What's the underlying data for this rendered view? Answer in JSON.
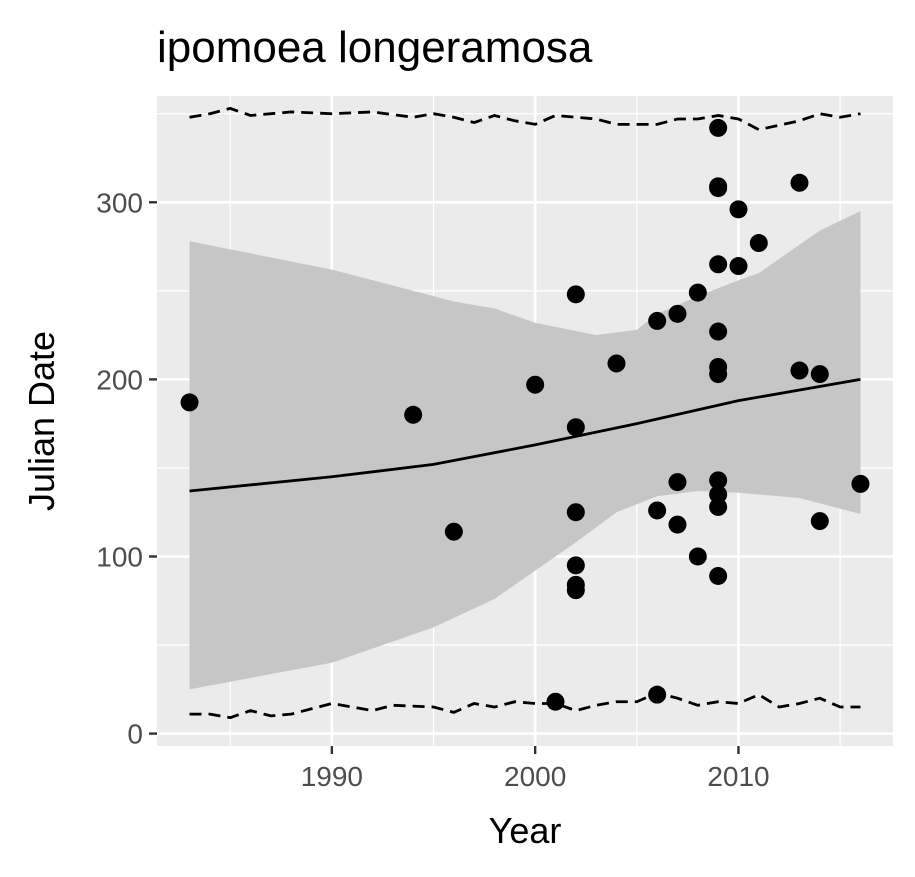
{
  "chart_data": {
    "type": "scatter",
    "title": "ipomoea longeramosa",
    "xlabel": "Year",
    "ylabel": "Julian Date",
    "xlim": [
      1981.4,
      2017.6
    ],
    "ylim": [
      -7,
      360
    ],
    "x_ticks": [
      1990,
      2000,
      2010
    ],
    "y_ticks": [
      0,
      100,
      200,
      300
    ],
    "grid": true,
    "colors": {
      "panel": "#ebebeb",
      "grid": "#ffffff",
      "points": "#000000",
      "ribbon": "#c6c6c6",
      "lines": "#000000",
      "tick_label": "#4d4d4d"
    },
    "points": [
      {
        "x": 1983,
        "y": 187
      },
      {
        "x": 1994,
        "y": 180
      },
      {
        "x": 1996,
        "y": 114
      },
      {
        "x": 2000,
        "y": 197
      },
      {
        "x": 2001,
        "y": 18
      },
      {
        "x": 2002,
        "y": 248
      },
      {
        "x": 2002,
        "y": 173
      },
      {
        "x": 2002,
        "y": 125
      },
      {
        "x": 2002,
        "y": 95
      },
      {
        "x": 2002,
        "y": 84
      },
      {
        "x": 2002,
        "y": 81
      },
      {
        "x": 2004,
        "y": 209
      },
      {
        "x": 2006,
        "y": 233
      },
      {
        "x": 2006,
        "y": 126
      },
      {
        "x": 2006,
        "y": 22
      },
      {
        "x": 2007,
        "y": 237
      },
      {
        "x": 2007,
        "y": 142
      },
      {
        "x": 2007,
        "y": 118
      },
      {
        "x": 2008,
        "y": 249
      },
      {
        "x": 2008,
        "y": 100
      },
      {
        "x": 2009,
        "y": 342
      },
      {
        "x": 2009,
        "y": 309
      },
      {
        "x": 2009,
        "y": 308
      },
      {
        "x": 2009,
        "y": 265
      },
      {
        "x": 2009,
        "y": 227
      },
      {
        "x": 2009,
        "y": 207
      },
      {
        "x": 2009,
        "y": 203
      },
      {
        "x": 2009,
        "y": 143
      },
      {
        "x": 2009,
        "y": 135
      },
      {
        "x": 2009,
        "y": 128
      },
      {
        "x": 2009,
        "y": 89
      },
      {
        "x": 2010,
        "y": 296
      },
      {
        "x": 2010,
        "y": 264
      },
      {
        "x": 2011,
        "y": 277
      },
      {
        "x": 2013,
        "y": 311
      },
      {
        "x": 2013,
        "y": 205
      },
      {
        "x": 2014,
        "y": 203
      },
      {
        "x": 2014,
        "y": 120
      },
      {
        "x": 2016,
        "y": 141
      }
    ],
    "fit_line": [
      {
        "x": 1983,
        "y": 137
      },
      {
        "x": 1990,
        "y": 145
      },
      {
        "x": 1995,
        "y": 152
      },
      {
        "x": 2000,
        "y": 163
      },
      {
        "x": 2005,
        "y": 175
      },
      {
        "x": 2010,
        "y": 188
      },
      {
        "x": 2016,
        "y": 200
      }
    ],
    "ribbon_upper": [
      {
        "x": 1983,
        "y": 278
      },
      {
        "x": 1990,
        "y": 262
      },
      {
        "x": 1996,
        "y": 244
      },
      {
        "x": 1998,
        "y": 240
      },
      {
        "x": 2000,
        "y": 232
      },
      {
        "x": 2003,
        "y": 225
      },
      {
        "x": 2005,
        "y": 228
      },
      {
        "x": 2006,
        "y": 237
      },
      {
        "x": 2008,
        "y": 247
      },
      {
        "x": 2010,
        "y": 256
      },
      {
        "x": 2011,
        "y": 260
      },
      {
        "x": 2014,
        "y": 284
      },
      {
        "x": 2016,
        "y": 295
      }
    ],
    "ribbon_lower": [
      {
        "x": 1983,
        "y": 25
      },
      {
        "x": 1990,
        "y": 40
      },
      {
        "x": 1995,
        "y": 60
      },
      {
        "x": 1998,
        "y": 76
      },
      {
        "x": 2000,
        "y": 92
      },
      {
        "x": 2002,
        "y": 108
      },
      {
        "x": 2004,
        "y": 125
      },
      {
        "x": 2006,
        "y": 134
      },
      {
        "x": 2008,
        "y": 137
      },
      {
        "x": 2010,
        "y": 136
      },
      {
        "x": 2013,
        "y": 133
      },
      {
        "x": 2016,
        "y": 124
      }
    ],
    "dashed_upper": [
      {
        "x": 1983,
        "y": 348
      },
      {
        "x": 1984,
        "y": 350
      },
      {
        "x": 1985,
        "y": 353
      },
      {
        "x": 1986,
        "y": 349
      },
      {
        "x": 1988,
        "y": 351
      },
      {
        "x": 1990,
        "y": 350
      },
      {
        "x": 1992,
        "y": 351
      },
      {
        "x": 1994,
        "y": 348
      },
      {
        "x": 1995,
        "y": 350
      },
      {
        "x": 1996,
        "y": 348
      },
      {
        "x": 1997,
        "y": 345
      },
      {
        "x": 1998,
        "y": 349
      },
      {
        "x": 1999,
        "y": 346
      },
      {
        "x": 2000,
        "y": 344
      },
      {
        "x": 2001,
        "y": 349
      },
      {
        "x": 2002,
        "y": 348
      },
      {
        "x": 2003,
        "y": 347
      },
      {
        "x": 2004,
        "y": 344
      },
      {
        "x": 2006,
        "y": 344
      },
      {
        "x": 2007,
        "y": 347
      },
      {
        "x": 2008,
        "y": 347
      },
      {
        "x": 2009,
        "y": 349
      },
      {
        "x": 2010,
        "y": 347
      },
      {
        "x": 2011,
        "y": 341
      },
      {
        "x": 2013,
        "y": 346
      },
      {
        "x": 2014,
        "y": 350
      },
      {
        "x": 2015,
        "y": 348
      },
      {
        "x": 2016,
        "y": 350
      }
    ],
    "dashed_lower": [
      {
        "x": 1983,
        "y": 11
      },
      {
        "x": 1984,
        "y": 11
      },
      {
        "x": 1985,
        "y": 9
      },
      {
        "x": 1986,
        "y": 13
      },
      {
        "x": 1987,
        "y": 10
      },
      {
        "x": 1988,
        "y": 11
      },
      {
        "x": 1990,
        "y": 17
      },
      {
        "x": 1992,
        "y": 13
      },
      {
        "x": 1993,
        "y": 16
      },
      {
        "x": 1995,
        "y": 15
      },
      {
        "x": 1996,
        "y": 12
      },
      {
        "x": 1997,
        "y": 17
      },
      {
        "x": 1998,
        "y": 15
      },
      {
        "x": 1999,
        "y": 18
      },
      {
        "x": 2000,
        "y": 17
      },
      {
        "x": 2001,
        "y": 17
      },
      {
        "x": 2002,
        "y": 13
      },
      {
        "x": 2003,
        "y": 16
      },
      {
        "x": 2004,
        "y": 18
      },
      {
        "x": 2005,
        "y": 18
      },
      {
        "x": 2006,
        "y": 23
      },
      {
        "x": 2007,
        "y": 20
      },
      {
        "x": 2008,
        "y": 16
      },
      {
        "x": 2009,
        "y": 18
      },
      {
        "x": 2010,
        "y": 17
      },
      {
        "x": 2011,
        "y": 22
      },
      {
        "x": 2012,
        "y": 15
      },
      {
        "x": 2013,
        "y": 17
      },
      {
        "x": 2014,
        "y": 20
      },
      {
        "x": 2015,
        "y": 15
      },
      {
        "x": 2016,
        "y": 15
      }
    ]
  }
}
